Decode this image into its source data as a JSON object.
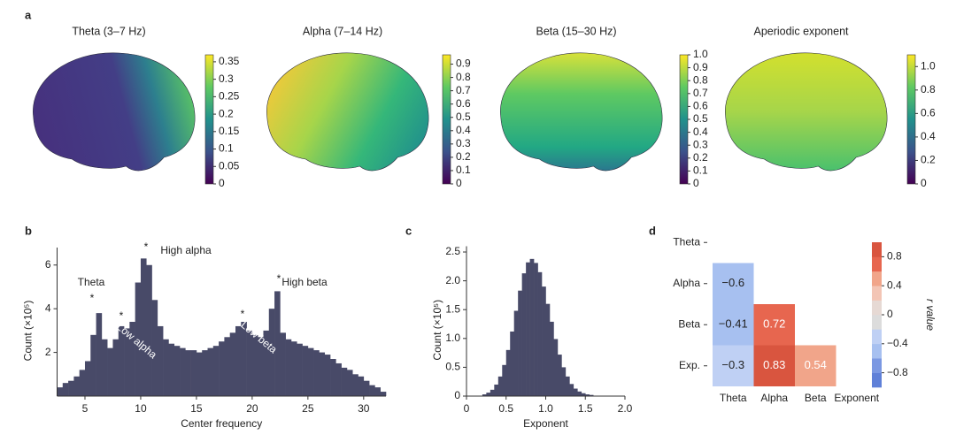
{
  "chart_data": [
    {
      "type": "brain-map",
      "panel": "a",
      "title": "Theta (3–7 Hz)",
      "colormap": [
        "#440154",
        "#3b528b",
        "#21918c",
        "#5ec962",
        "#fde725"
      ],
      "clim": [
        0,
        0.37
      ],
      "cticks": [
        0,
        0.05,
        0.1,
        0.15,
        0.2,
        0.25,
        0.3,
        0.35
      ]
    },
    {
      "type": "brain-map",
      "title": "Alpha (7–14 Hz)",
      "colormap": [
        "#440154",
        "#3b528b",
        "#21918c",
        "#5ec962",
        "#fde725"
      ],
      "clim": [
        0,
        0.97
      ],
      "cticks": [
        0,
        0.1,
        0.2,
        0.3,
        0.4,
        0.5,
        0.6,
        0.7,
        0.8,
        0.9
      ]
    },
    {
      "type": "brain-map",
      "title": "Beta (15–30 Hz)",
      "colormap": [
        "#440154",
        "#3b528b",
        "#21918c",
        "#5ec962",
        "#fde725"
      ],
      "clim": [
        0,
        1.0
      ],
      "cticks": [
        0,
        0.1,
        0.2,
        0.3,
        0.4,
        0.5,
        0.6,
        0.7,
        0.8,
        0.9,
        {
          "value": 1.0,
          "label": "1.0"
        }
      ]
    },
    {
      "type": "brain-map",
      "title": "Aperiodic exponent",
      "colormap": [
        "#440154",
        "#3b528b",
        "#21918c",
        "#5ec962",
        "#fde725"
      ],
      "clim": [
        0,
        1.1
      ],
      "cticks": [
        0,
        0.2,
        0.4,
        0.6,
        0.8,
        {
          "value": 1.0,
          "label": "1.0"
        }
      ]
    },
    {
      "type": "histogram",
      "panel": "b",
      "xlabel": "Center frequency",
      "ylabel": "Count (×10⁵)",
      "color": "#484a68",
      "bins": [
        2.5,
        3,
        3.5,
        4,
        4.5,
        5,
        5.5,
        6,
        6.5,
        7,
        7.5,
        8,
        8.5,
        9,
        9.5,
        10,
        10.5,
        11,
        11.5,
        12,
        12.5,
        13,
        13.5,
        14,
        14.5,
        15,
        15.5,
        16,
        16.5,
        17,
        17.5,
        18,
        18.5,
        19,
        19.5,
        20,
        20.5,
        21,
        21.5,
        22,
        22.5,
        23,
        23.5,
        24,
        24.5,
        25,
        25.5,
        26,
        26.5,
        27,
        27.5,
        28,
        28.5,
        29,
        29.5,
        30,
        30.5,
        31,
        31.5,
        32
      ],
      "values": [
        0.4,
        0.6,
        0.7,
        0.9,
        1.2,
        1.6,
        2.8,
        3.8,
        2.6,
        2.2,
        2.6,
        3.2,
        3.1,
        3.4,
        5.2,
        6.3,
        6.0,
        4.4,
        3.2,
        2.6,
        2.4,
        2.3,
        2.2,
        2.1,
        2.1,
        2.0,
        2.1,
        2.2,
        2.3,
        2.5,
        2.7,
        2.9,
        3.2,
        3.4,
        3.0,
        2.8,
        2.7,
        3.0,
        4.0,
        4.8,
        2.9,
        2.6,
        2.5,
        2.4,
        2.3,
        2.2,
        2.1,
        2.0,
        1.9,
        1.7,
        1.5,
        1.3,
        1.2,
        1.0,
        0.9,
        0.7,
        0.5,
        0.4,
        0.2
      ],
      "xlim": [
        2.5,
        32
      ],
      "xticks": [
        5,
        10,
        15,
        20,
        25,
        30
      ],
      "ylim": [
        0,
        6.8
      ],
      "yticks": [
        2,
        4,
        6
      ],
      "annotations": [
        "Theta",
        "*",
        "*",
        "Low alpha",
        "*",
        "High alpha",
        "*",
        "Low beta",
        "*",
        "High beta"
      ]
    },
    {
      "type": "histogram",
      "panel": "c",
      "xlabel": "Exponent",
      "ylabel": "Count (×10⁵)",
      "color": "#484a68",
      "bins": [
        0.2,
        0.25,
        0.3,
        0.35,
        0.4,
        0.45,
        0.5,
        0.55,
        0.6,
        0.65,
        0.7,
        0.75,
        0.8,
        0.85,
        0.9,
        0.95,
        1.0,
        1.05,
        1.1,
        1.15,
        1.2,
        1.25,
        1.3,
        1.35,
        1.4,
        1.45,
        1.5,
        1.55,
        1.6
      ],
      "values": [
        0.03,
        0.06,
        0.11,
        0.2,
        0.34,
        0.54,
        0.8,
        1.12,
        1.48,
        1.83,
        2.13,
        2.32,
        2.38,
        2.31,
        2.15,
        1.9,
        1.6,
        1.29,
        0.99,
        0.72,
        0.5,
        0.34,
        0.21,
        0.13,
        0.08,
        0.05,
        0.03,
        0.02
      ],
      "xlim": [
        0,
        2.0
      ],
      "xticks": [
        0,
        0.5,
        {
          "value": 1.0,
          "label": "1.0"
        },
        1.5,
        {
          "value": 2.0,
          "label": "2.0"
        }
      ],
      "ylim": [
        0,
        2.6
      ],
      "yticks": [
        0,
        0.5,
        {
          "value": 1.0,
          "label": "1.0"
        },
        1.5,
        {
          "value": 2.0,
          "label": "2.0"
        },
        2.5
      ]
    },
    {
      "type": "heatmap",
      "panel": "d",
      "rows": [
        "Theta",
        "Alpha",
        "Beta",
        "Exp."
      ],
      "columns": [
        "Theta",
        "Alpha",
        "Beta",
        "Exponent"
      ],
      "values": [
        [
          null,
          null,
          null,
          null
        ],
        [
          -0.6,
          null,
          null,
          null
        ],
        [
          -0.41,
          0.72,
          null,
          null
        ],
        [
          -0.3,
          0.83,
          0.54,
          null
        ]
      ],
      "value_labels": [
        [
          null,
          null,
          null,
          null
        ],
        [
          "−0.6",
          null,
          null,
          null
        ],
        [
          "−0.41",
          "0.72",
          null,
          null
        ],
        [
          "−0.3",
          "0.83",
          "0.54",
          null
        ]
      ],
      "clim": [
        -1,
        1
      ],
      "colorbar_colors": [
        "#5f80d8",
        "#7b98e2",
        "#a7c0f0",
        "#bfd0f4",
        "#dcdcdc",
        "#e6d9d4",
        "#f3c5b5",
        "#f1a58a",
        "#e7664f",
        "#d9553f"
      ],
      "cticks": [
        {
          "value": -0.8,
          "label": "−0.8"
        },
        {
          "value": -0.4,
          "label": "−0.4"
        },
        0,
        0.4,
        0.8
      ],
      "clabel": "r value"
    }
  ]
}
